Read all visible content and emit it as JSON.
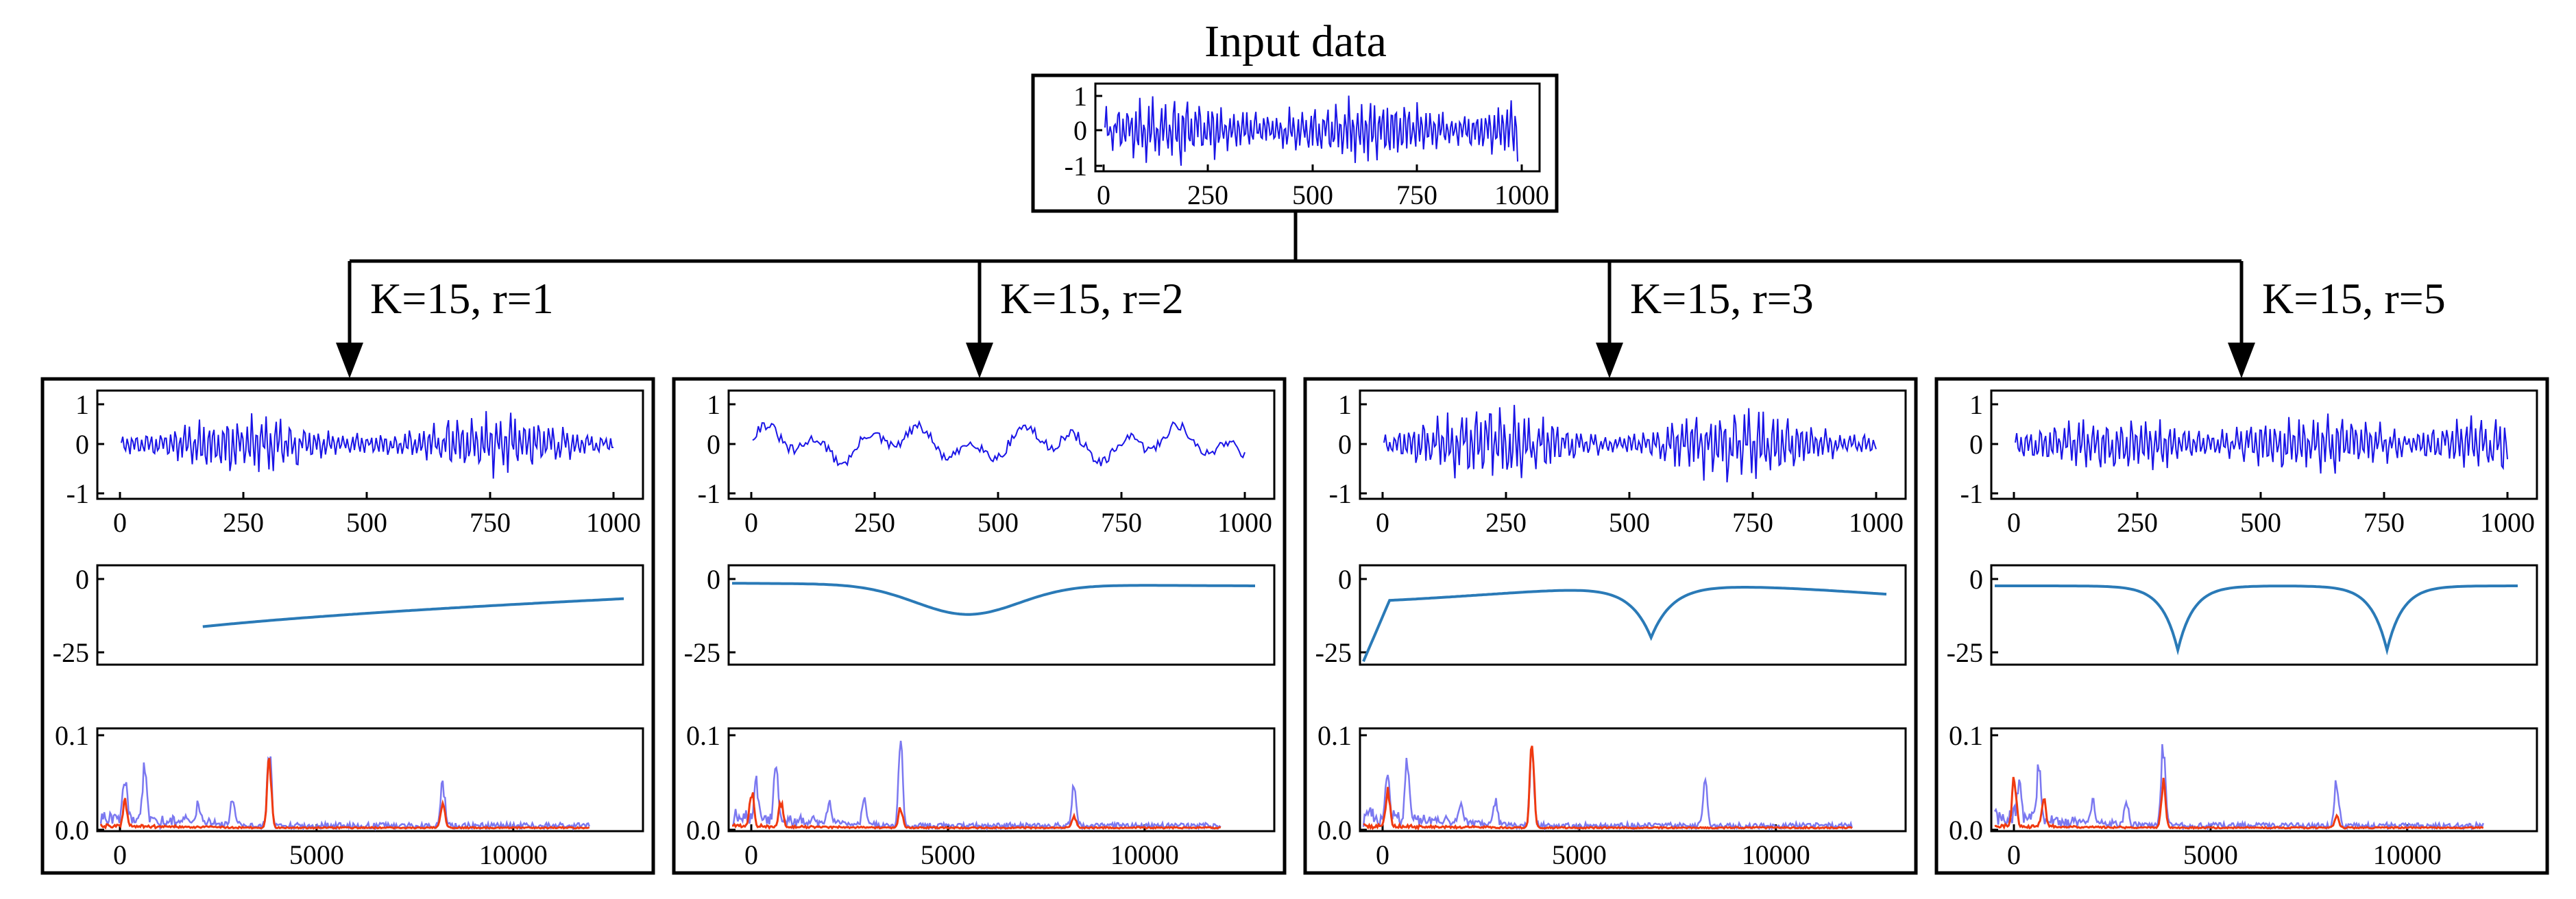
{
  "title": "Input data",
  "colors": {
    "ink": "#000000",
    "signal": "#1a14e6",
    "envelope": "#2a7ab7",
    "spectrum_light": "#7b78f0",
    "spectrum_red": "#f03a10"
  },
  "input_panel": {
    "y_ticks": [
      "1",
      "0",
      "-1"
    ],
    "x_ticks": [
      "0",
      "250",
      "500",
      "750",
      "1000"
    ]
  },
  "branches": [
    {
      "label": "K=15, r=1",
      "signal": {
        "y_ticks": [
          "1",
          "0",
          "-1"
        ],
        "x_ticks": [
          "0",
          "250",
          "500",
          "750",
          "1000"
        ]
      },
      "response": {
        "y_ticks": [
          "0",
          "-25"
        ]
      },
      "spectrum": {
        "y_ticks": [
          "0.1",
          "0.0"
        ],
        "x_ticks": [
          "0",
          "5000",
          "10000"
        ]
      }
    },
    {
      "label": "K=15, r=2",
      "signal": {
        "y_ticks": [
          "1",
          "0",
          "-1"
        ],
        "x_ticks": [
          "0",
          "250",
          "500",
          "750",
          "1000"
        ]
      },
      "response": {
        "y_ticks": [
          "0",
          "-25"
        ]
      },
      "spectrum": {
        "y_ticks": [
          "0.1",
          "0.0"
        ],
        "x_ticks": [
          "0",
          "5000",
          "10000"
        ]
      }
    },
    {
      "label": "K=15, r=3",
      "signal": {
        "y_ticks": [
          "1",
          "0",
          "-1"
        ],
        "x_ticks": [
          "0",
          "250",
          "500",
          "750",
          "1000"
        ]
      },
      "response": {
        "y_ticks": [
          "0",
          "-25"
        ]
      },
      "spectrum": {
        "y_ticks": [
          "0.1",
          "0.0"
        ],
        "x_ticks": [
          "0",
          "5000",
          "10000"
        ]
      }
    },
    {
      "label": "K=15, r=5",
      "signal": {
        "y_ticks": [
          "1",
          "0",
          "-1"
        ],
        "x_ticks": [
          "0",
          "250",
          "500",
          "750",
          "1000"
        ]
      },
      "response": {
        "y_ticks": [
          "0",
          "-25"
        ]
      },
      "spectrum": {
        "y_ticks": [
          "0.1",
          "0.0"
        ],
        "x_ticks": [
          "0",
          "5000",
          "10000"
        ]
      }
    }
  ]
}
